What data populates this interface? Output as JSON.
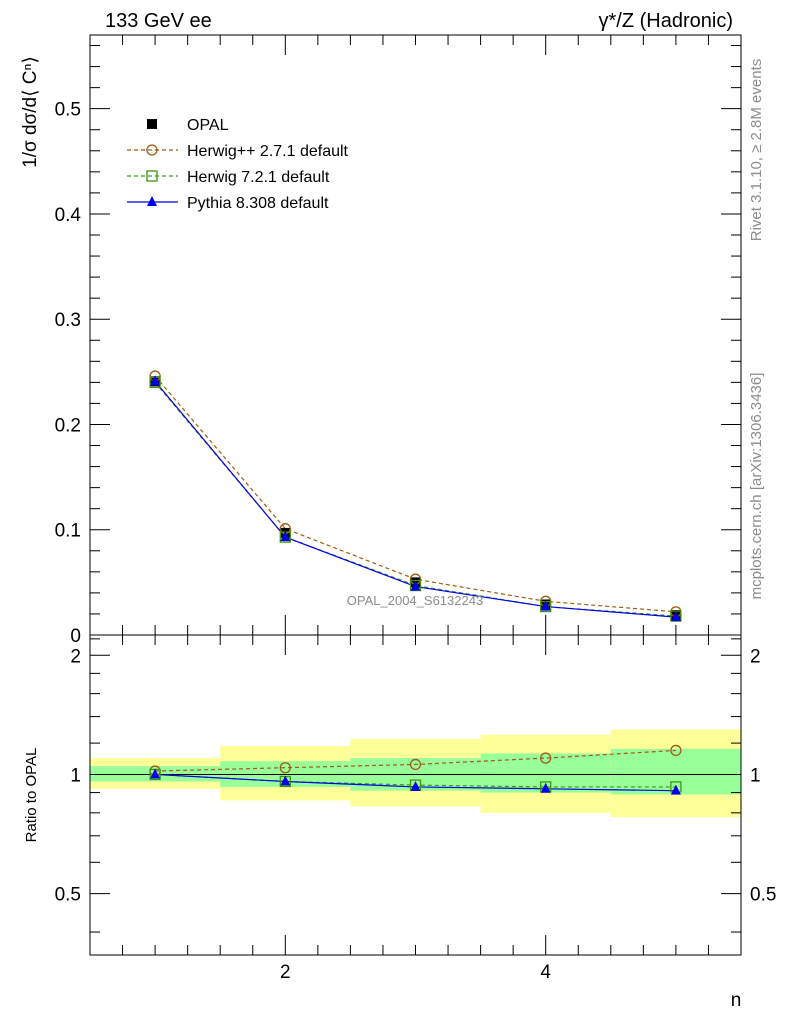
{
  "header": {
    "left": "133 GeV ee",
    "right": "γ*/Z (Hadronic)"
  },
  "side_text": {
    "rivet": "Rivet 3.1.10, ≥ 2.8M events",
    "source": "mcplots.cern.ch [arXiv:1306.3436]"
  },
  "watermark": "OPAL_2004_S6132243",
  "chart_data": [
    {
      "type": "line",
      "panel": "main",
      "ylabel": "1/σ dσ/d⟨ Cⁿ⟩",
      "ylim": [
        0,
        0.57
      ],
      "yticks": [
        0,
        0.1,
        0.2,
        0.3,
        0.4,
        0.5
      ],
      "ytick_labels": [
        "0",
        "0.1",
        "0.2",
        "0.3",
        "0.4",
        "0.5"
      ],
      "xlim": [
        0.5,
        5.5
      ],
      "x": [
        1,
        2,
        3,
        4,
        5
      ],
      "legend_position": "top-left",
      "series": [
        {
          "name": "OPAL",
          "values": [
            0.241,
            0.097,
            0.05,
            0.029,
            0.019
          ],
          "color": "#000000",
          "marker": "filled-square",
          "line": "none"
        },
        {
          "name": "Herwig++ 2.7.1 default",
          "values": [
            0.246,
            0.101,
            0.053,
            0.032,
            0.022
          ],
          "color": "#a05a14",
          "marker": "open-circle",
          "line": "dashed"
        },
        {
          "name": "Herwig 7.2.1 default",
          "values": [
            0.24,
            0.093,
            0.047,
            0.027,
            0.018
          ],
          "color": "#3c9614",
          "marker": "open-square",
          "line": "dashed"
        },
        {
          "name": "Pythia 8.308 default",
          "values": [
            0.241,
            0.093,
            0.046,
            0.027,
            0.017
          ],
          "color": "#0000e6",
          "marker": "filled-triangle",
          "line": "solid"
        }
      ]
    },
    {
      "type": "line",
      "panel": "ratio",
      "xlabel": "n",
      "ylabel": "Ratio to OPAL",
      "ylim": [
        0.35,
        2.25
      ],
      "yticks": [
        0.5,
        1,
        2
      ],
      "ytick_labels": [
        "0.5",
        "1",
        "2"
      ],
      "xlim": [
        0.5,
        5.5
      ],
      "xticks": [
        2,
        4
      ],
      "xtick_labels": [
        "2",
        "4"
      ],
      "x": [
        1,
        2,
        3,
        4,
        5
      ],
      "bands": {
        "inner": [
          [
            0.96,
            1.05
          ],
          [
            0.93,
            1.08
          ],
          [
            0.91,
            1.1
          ],
          [
            0.9,
            1.13
          ],
          [
            0.89,
            1.16
          ]
        ],
        "outer": [
          [
            0.92,
            1.1
          ],
          [
            0.86,
            1.18
          ],
          [
            0.83,
            1.23
          ],
          [
            0.8,
            1.26
          ],
          [
            0.78,
            1.3
          ]
        ],
        "inner_color": "#99ff99",
        "outer_color": "#ffff99"
      },
      "series": [
        {
          "name": "Herwig++ 2.7.1 default",
          "values": [
            1.02,
            1.04,
            1.06,
            1.1,
            1.15
          ],
          "color": "#a05a14"
        },
        {
          "name": "Herwig 7.2.1 default",
          "values": [
            1.0,
            0.96,
            0.94,
            0.93,
            0.93
          ],
          "color": "#3c9614"
        },
        {
          "name": "Pythia 8.308 default",
          "values": [
            1.0,
            0.96,
            0.93,
            0.92,
            0.91
          ],
          "color": "#0000e6"
        }
      ]
    }
  ]
}
